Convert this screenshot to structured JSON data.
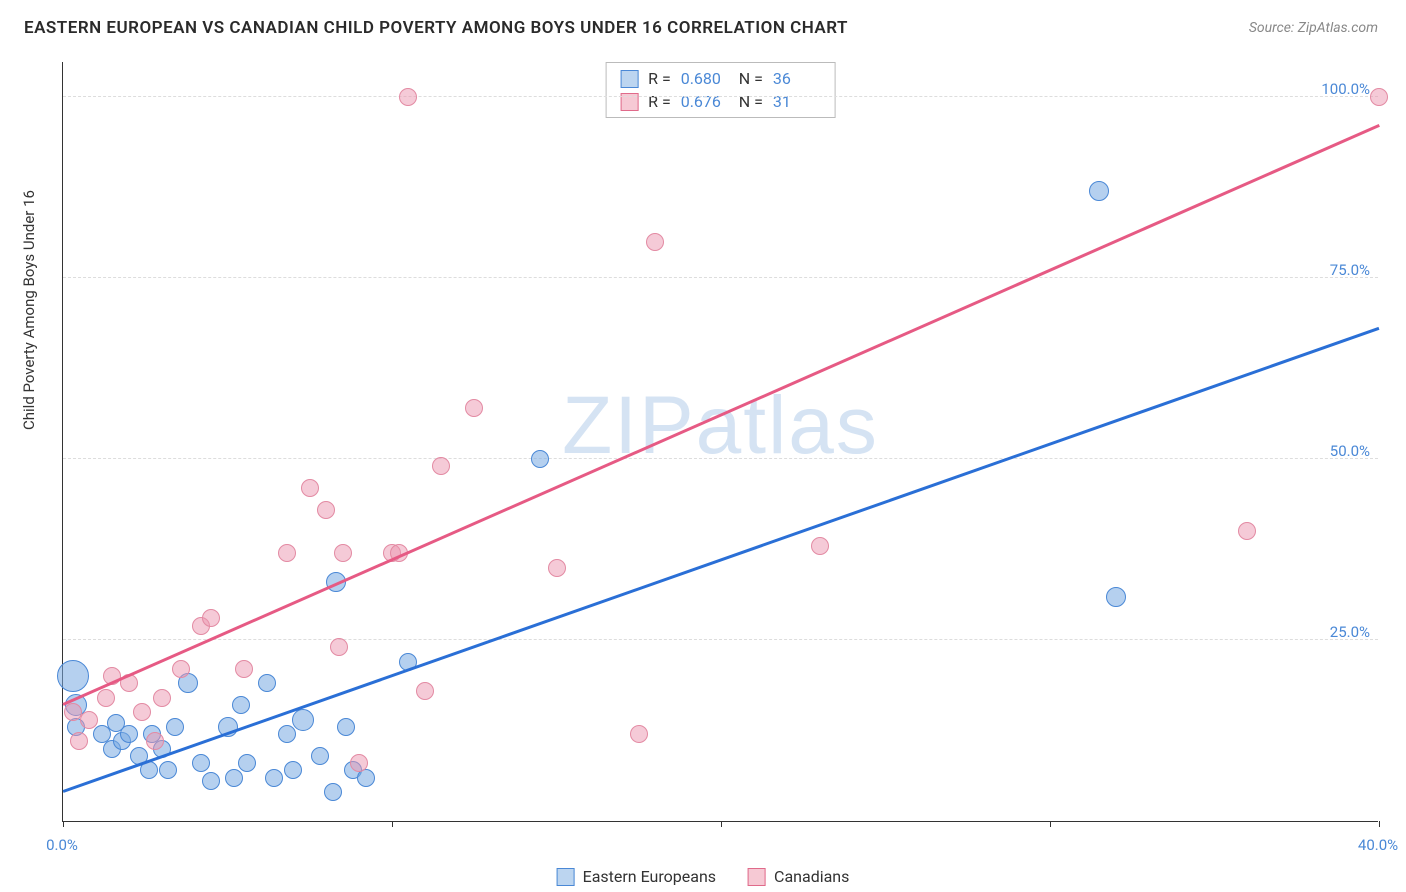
{
  "title": "EASTERN EUROPEAN VS CANADIAN CHILD POVERTY AMONG BOYS UNDER 16 CORRELATION CHART",
  "source_label": "Source:",
  "source_value": "ZipAtlas.com",
  "y_axis_label": "Child Poverty Among Boys Under 16",
  "watermark_a": "ZIP",
  "watermark_b": "atlas",
  "chart": {
    "type": "scatter",
    "xlim": [
      0,
      40
    ],
    "ylim": [
      0,
      105
    ],
    "x_ticks": [
      0,
      10,
      20,
      30,
      40
    ],
    "x_tick_labels": {
      "0": "0.0%",
      "40": "40.0%"
    },
    "y_ticks": [
      25,
      50,
      75,
      100
    ],
    "y_tick_labels": {
      "25": "25.0%",
      "50": "50.0%",
      "75": "75.0%",
      "100": "100.0%"
    },
    "grid_color": "#dddddd",
    "background_color": "#ffffff",
    "series": [
      {
        "name": "Eastern Europeans",
        "swatch_fill": "#bcd5f0",
        "swatch_border": "#4a88d6",
        "marker_fill": "rgba(120,170,225,0.55)",
        "marker_border": "#4a88d6",
        "marker_radius": 9,
        "line_color": "#2a6fd6",
        "trend": {
          "x1": 0,
          "y1": 4,
          "x2": 40,
          "y2": 68
        },
        "r_label": "R =",
        "r_value": "0.680",
        "n_label": "N =",
        "n_value": "36",
        "points": [
          {
            "x": 0.3,
            "y": 20,
            "r": 16
          },
          {
            "x": 0.4,
            "y": 16,
            "r": 11
          },
          {
            "x": 0.4,
            "y": 13,
            "r": 9
          },
          {
            "x": 1.2,
            "y": 12,
            "r": 9
          },
          {
            "x": 1.5,
            "y": 10,
            "r": 9
          },
          {
            "x": 1.6,
            "y": 13.5,
            "r": 9
          },
          {
            "x": 1.8,
            "y": 11,
            "r": 9
          },
          {
            "x": 2.0,
            "y": 12,
            "r": 9
          },
          {
            "x": 2.3,
            "y": 9,
            "r": 9
          },
          {
            "x": 2.6,
            "y": 7,
            "r": 9
          },
          {
            "x": 2.7,
            "y": 12,
            "r": 9
          },
          {
            "x": 3.0,
            "y": 10,
            "r": 9
          },
          {
            "x": 3.2,
            "y": 7,
            "r": 9
          },
          {
            "x": 3.4,
            "y": 13,
            "r": 9
          },
          {
            "x": 3.8,
            "y": 19,
            "r": 10
          },
          {
            "x": 4.2,
            "y": 8,
            "r": 9
          },
          {
            "x": 4.5,
            "y": 5.5,
            "r": 9
          },
          {
            "x": 5.0,
            "y": 13,
            "r": 10
          },
          {
            "x": 5.2,
            "y": 6,
            "r": 9
          },
          {
            "x": 5.4,
            "y": 16,
            "r": 9
          },
          {
            "x": 5.6,
            "y": 8,
            "r": 9
          },
          {
            "x": 6.2,
            "y": 19,
            "r": 9
          },
          {
            "x": 6.4,
            "y": 6,
            "r": 9
          },
          {
            "x": 6.8,
            "y": 12,
            "r": 9
          },
          {
            "x": 7.0,
            "y": 7,
            "r": 9
          },
          {
            "x": 7.3,
            "y": 14,
            "r": 11
          },
          {
            "x": 7.8,
            "y": 9,
            "r": 9
          },
          {
            "x": 8.2,
            "y": 4,
            "r": 9
          },
          {
            "x": 8.3,
            "y": 33,
            "r": 10
          },
          {
            "x": 8.6,
            "y": 13,
            "r": 9
          },
          {
            "x": 8.8,
            "y": 7,
            "r": 9
          },
          {
            "x": 9.2,
            "y": 6,
            "r": 9
          },
          {
            "x": 10.5,
            "y": 22,
            "r": 9
          },
          {
            "x": 14.5,
            "y": 50,
            "r": 9
          },
          {
            "x": 31.5,
            "y": 87,
            "r": 10
          },
          {
            "x": 32.0,
            "y": 31,
            "r": 10
          }
        ]
      },
      {
        "name": "Canadians",
        "swatch_fill": "#f6c9d4",
        "swatch_border": "#e06a8a",
        "marker_fill": "rgba(235,150,175,0.5)",
        "marker_border": "#e38aa3",
        "marker_radius": 9,
        "line_color": "#e65a84",
        "trend": {
          "x1": 0,
          "y1": 16,
          "x2": 40,
          "y2": 96
        },
        "r_label": "R =",
        "r_value": "0.676",
        "n_label": "N =",
        "n_value": "31",
        "points": [
          {
            "x": 0.3,
            "y": 15,
            "r": 9
          },
          {
            "x": 0.5,
            "y": 11,
            "r": 9
          },
          {
            "x": 0.8,
            "y": 14,
            "r": 9
          },
          {
            "x": 1.3,
            "y": 17,
            "r": 9
          },
          {
            "x": 1.5,
            "y": 20,
            "r": 9
          },
          {
            "x": 2.0,
            "y": 19,
            "r": 9
          },
          {
            "x": 2.4,
            "y": 15,
            "r": 9
          },
          {
            "x": 2.8,
            "y": 11,
            "r": 9
          },
          {
            "x": 3.0,
            "y": 17,
            "r": 9
          },
          {
            "x": 3.6,
            "y": 21,
            "r": 9
          },
          {
            "x": 4.2,
            "y": 27,
            "r": 9
          },
          {
            "x": 4.5,
            "y": 28,
            "r": 9
          },
          {
            "x": 5.5,
            "y": 21,
            "r": 9
          },
          {
            "x": 6.8,
            "y": 37,
            "r": 9
          },
          {
            "x": 7.5,
            "y": 46,
            "r": 9
          },
          {
            "x": 8.0,
            "y": 43,
            "r": 9
          },
          {
            "x": 8.4,
            "y": 24,
            "r": 9
          },
          {
            "x": 8.5,
            "y": 37,
            "r": 9
          },
          {
            "x": 9.0,
            "y": 8,
            "r": 9
          },
          {
            "x": 10.0,
            "y": 37,
            "r": 9
          },
          {
            "x": 10.2,
            "y": 37,
            "r": 9
          },
          {
            "x": 10.5,
            "y": 100,
            "r": 9
          },
          {
            "x": 11.0,
            "y": 18,
            "r": 9
          },
          {
            "x": 11.5,
            "y": 49,
            "r": 9
          },
          {
            "x": 12.5,
            "y": 57,
            "r": 9
          },
          {
            "x": 15.0,
            "y": 35,
            "r": 9
          },
          {
            "x": 17.5,
            "y": 12,
            "r": 9
          },
          {
            "x": 18.0,
            "y": 80,
            "r": 9
          },
          {
            "x": 23.0,
            "y": 38,
            "r": 9
          },
          {
            "x": 36.0,
            "y": 40,
            "r": 9
          },
          {
            "x": 40.0,
            "y": 100,
            "r": 9
          }
        ]
      }
    ]
  }
}
